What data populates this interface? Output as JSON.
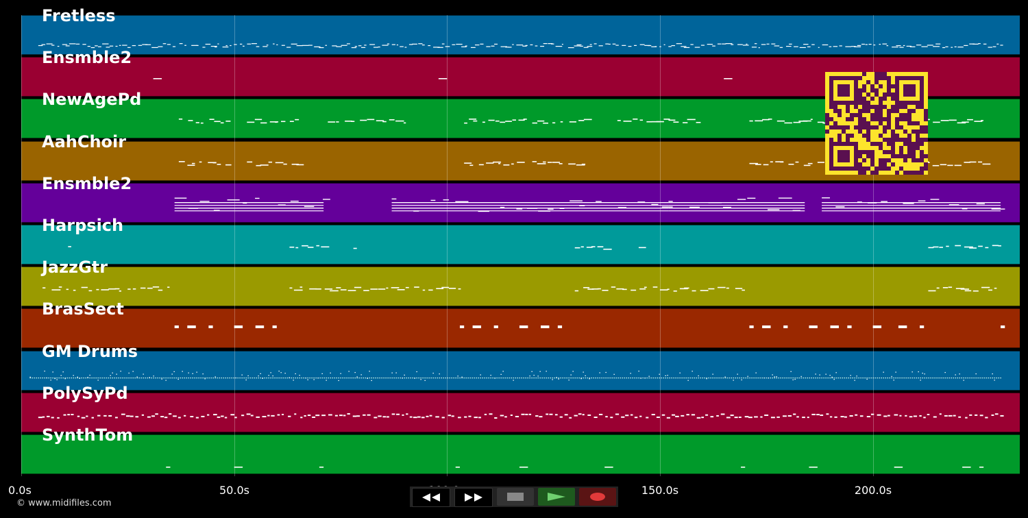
{
  "app": {
    "copyright": "© www.midifiles.com"
  },
  "timeline": {
    "ticks": [
      "0.0s",
      "50.0s",
      "100.0s",
      "150.0s",
      "200.0s"
    ],
    "tick_seconds": [
      0,
      50,
      100,
      150,
      200
    ],
    "total_seconds": 234.5
  },
  "tracks": [
    {
      "name": "Fretless",
      "color": "#00649a",
      "pattern": "dense",
      "segments": [
        [
          4,
          230
        ]
      ]
    },
    {
      "name": "Ensmble2",
      "color": "#9a0032",
      "pattern": "sparse",
      "segments": [
        [
          31,
          33
        ],
        [
          98,
          100
        ],
        [
          165,
          167
        ]
      ]
    },
    {
      "name": "NewAgePd",
      "color": "#009a2a",
      "pattern": "phrase",
      "segments": [
        [
          37,
          50
        ],
        [
          53,
          66
        ],
        [
          72,
          90
        ],
        [
          104,
          119
        ],
        [
          120,
          133
        ],
        [
          140,
          159
        ],
        [
          171,
          187
        ],
        [
          187,
          200
        ],
        [
          206,
          226
        ]
      ]
    },
    {
      "name": "AahChoir",
      "color": "#9a6400",
      "pattern": "phrase",
      "segments": [
        [
          37,
          50
        ],
        [
          53,
          65
        ],
        [
          104,
          117
        ],
        [
          120,
          132
        ],
        [
          171,
          185
        ],
        [
          187,
          200
        ],
        [
          206,
          226
        ]
      ]
    },
    {
      "name": "Ensmble2",
      "color": "#64009a",
      "pattern": "block",
      "segments": [
        [
          36,
          71
        ],
        [
          87,
          152
        ],
        [
          152,
          184
        ],
        [
          188,
          230
        ]
      ]
    },
    {
      "name": "Harpsich",
      "color": "#009a9a",
      "pattern": "phrase",
      "segments": [
        [
          11,
          12
        ],
        [
          63,
          71
        ],
        [
          78,
          79
        ],
        [
          130,
          138
        ],
        [
          145,
          146
        ],
        [
          213,
          230
        ]
      ]
    },
    {
      "name": "JazzGtr",
      "color": "#9a9a00",
      "pattern": "phrase",
      "segments": [
        [
          5,
          36
        ],
        [
          63,
          103
        ],
        [
          130,
          170
        ],
        [
          213,
          230
        ]
      ]
    },
    {
      "name": "BrasSect",
      "color": "#9a2800",
      "pattern": "hits",
      "segments": [
        [
          36,
          37
        ],
        [
          39,
          41
        ],
        [
          44,
          45
        ],
        [
          50,
          52
        ],
        [
          55,
          57
        ],
        [
          59,
          60
        ],
        [
          103,
          104
        ],
        [
          106,
          108
        ],
        [
          111,
          112
        ],
        [
          117,
          119
        ],
        [
          122,
          124
        ],
        [
          126,
          127
        ],
        [
          171,
          172
        ],
        [
          174,
          176
        ],
        [
          179,
          180
        ],
        [
          185,
          187
        ],
        [
          190,
          192
        ],
        [
          194,
          195
        ],
        [
          200,
          202
        ],
        [
          206,
          208
        ],
        [
          211,
          212
        ],
        [
          230,
          231
        ]
      ]
    },
    {
      "name": "GM Drums",
      "color": "#00649a",
      "pattern": "drums",
      "segments": [
        [
          2,
          230
        ]
      ]
    },
    {
      "name": "PolySyPd",
      "color": "#9a0032",
      "pattern": "poly",
      "segments": [
        [
          4,
          230
        ]
      ]
    },
    {
      "name": "SynthTom",
      "color": "#009a2a",
      "pattern": "sparse",
      "segments": [
        [
          34,
          35
        ],
        [
          50,
          52
        ],
        [
          70,
          71
        ],
        [
          102,
          103
        ],
        [
          117,
          119
        ],
        [
          137,
          139
        ],
        [
          169,
          170
        ],
        [
          185,
          187
        ],
        [
          205,
          207
        ],
        [
          221,
          223
        ],
        [
          225,
          226
        ]
      ]
    }
  ],
  "qr": {
    "fg": "#5a1050",
    "bg": "#fde42c"
  },
  "transport": {
    "buttons": [
      "rewind-icon",
      "fast-forward-icon",
      "stop-icon",
      "play-icon",
      "record-icon"
    ]
  }
}
